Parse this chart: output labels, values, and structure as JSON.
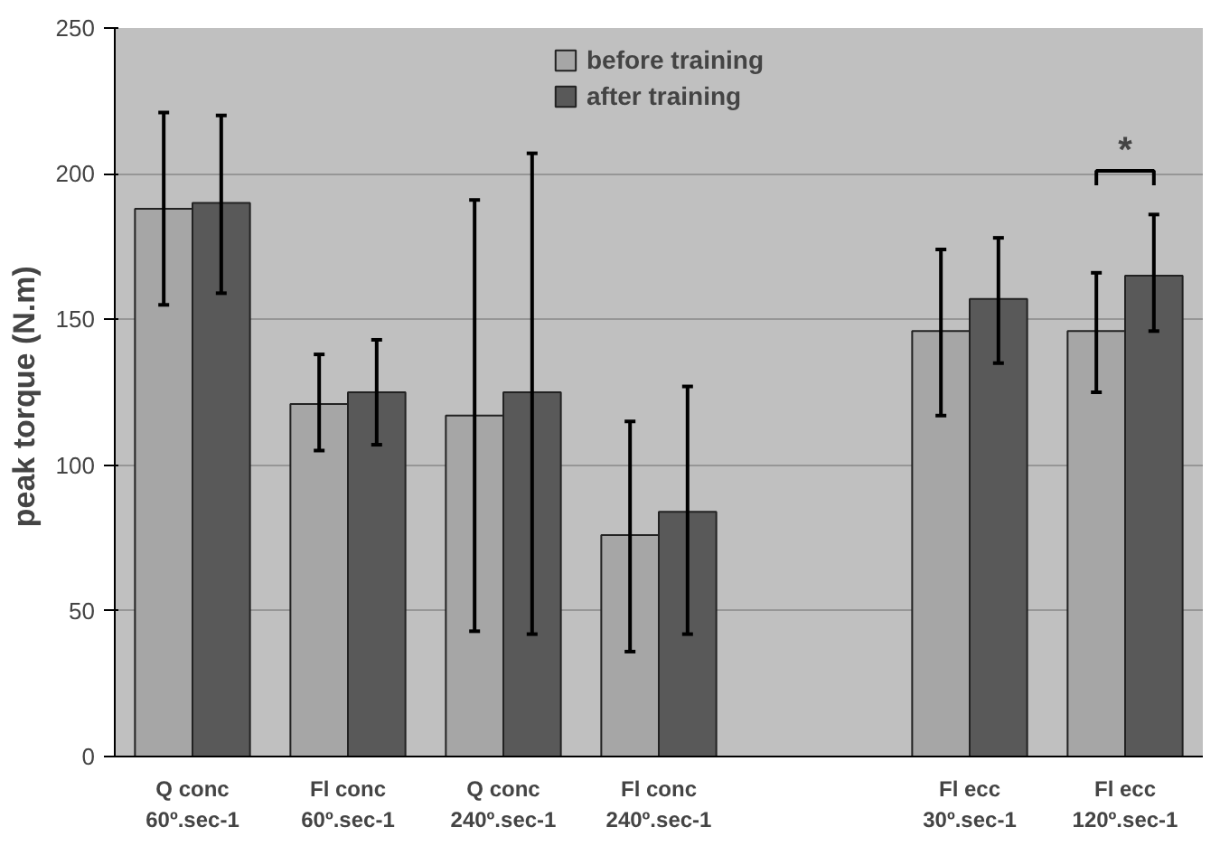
{
  "chart_data": {
    "type": "bar",
    "ylabel": "peak torque  (N.m)",
    "categories": [
      "Q conc\n60º.sec-1",
      "Fl conc\n60º.sec-1",
      "Q conc\n240º.sec-1",
      "Fl conc\n240º.sec-1",
      null,
      "Fl ecc\n30º.sec-1",
      "Fl ecc\n120º.sec-1"
    ],
    "series": [
      {
        "name": "before training",
        "color": "#a6a6a6",
        "values": [
          188,
          121,
          117,
          76,
          null,
          146,
          146
        ],
        "errors": [
          [
            155,
            221
          ],
          [
            105,
            138
          ],
          [
            43,
            191
          ],
          [
            36,
            115
          ],
          null,
          [
            117,
            174
          ],
          [
            125,
            166
          ]
        ]
      },
      {
        "name": "after training",
        "color": "#595959",
        "values": [
          190,
          125,
          125,
          84,
          null,
          157,
          165
        ],
        "errors": [
          [
            159,
            220
          ],
          [
            107,
            143
          ],
          [
            42,
            207
          ],
          [
            42,
            127
          ],
          null,
          [
            135,
            178
          ],
          [
            146,
            186
          ]
        ]
      }
    ],
    "ylim": [
      0,
      250
    ],
    "yticks": [
      0,
      50,
      100,
      150,
      200,
      250
    ],
    "grid": "y",
    "legend": "top",
    "annotations": [
      "*"
    ]
  }
}
